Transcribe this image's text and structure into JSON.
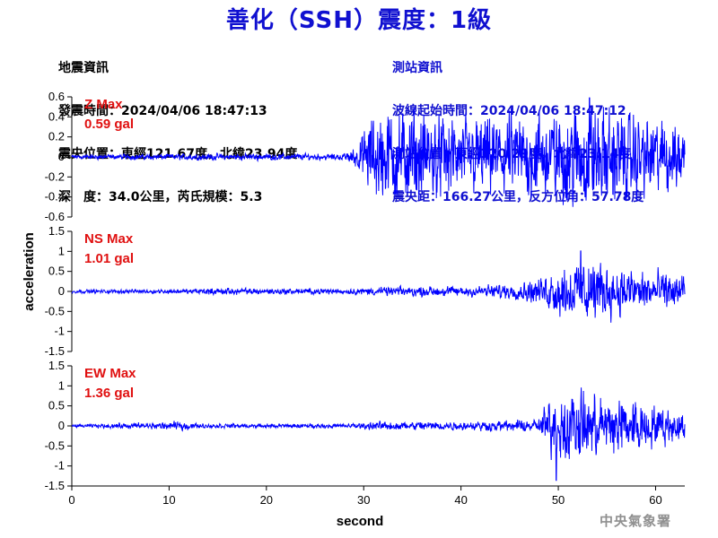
{
  "title": "善化（SSH）震度：1級",
  "quake_info": {
    "heading": "地震資訊",
    "origin_time": "發震時間：2024/04/06 18:47:13",
    "epicenter": "震央位置：東經121.67度，北緯23.94度",
    "depth_magnitude": "深　度：34.0公里，芮氏規模：5.3"
  },
  "station_info": {
    "heading": "測站資訊",
    "arrival_time": "波線起始時間：2024/04/06 18:47:12",
    "location": "測站位置：東經120.29度，北緯23.14度",
    "distance": "震央距：166.27公里，反方位角：57.78度"
  },
  "agency": "中央氣象署",
  "colors": {
    "title": "#1010d0",
    "trace": "#0000ff",
    "max_label": "#e01010",
    "agency": "#909090"
  },
  "chart_data": {
    "type": "line",
    "xlabel": "second",
    "ylabel": "acceleration",
    "xlim": [
      0,
      63
    ],
    "xticks": [
      0,
      10,
      20,
      30,
      40,
      50,
      60
    ],
    "panels": [
      {
        "name": "Z",
        "max_label": "Z Max",
        "max_value": "0.59 gal",
        "ylim": [
          -0.6,
          0.6
        ],
        "yticks": [
          "0.6",
          "0.4",
          "0.2",
          "0",
          "-0.2",
          "-0.4",
          "-0.6"
        ],
        "yvalues": [
          0.6,
          0.4,
          0.2,
          0,
          -0.2,
          -0.4,
          -0.6
        ],
        "envelope": [
          [
            0,
            0.02
          ],
          [
            12,
            0.03
          ],
          [
            28,
            0.03
          ],
          [
            29.5,
            0.12
          ],
          [
            30.5,
            0.35
          ],
          [
            32,
            0.45
          ],
          [
            35,
            0.42
          ],
          [
            40,
            0.35
          ],
          [
            45,
            0.38
          ],
          [
            50,
            0.42
          ],
          [
            53,
            0.5
          ],
          [
            56,
            0.42
          ],
          [
            60,
            0.35
          ],
          [
            63,
            0.3
          ]
        ],
        "peak": {
          "t": 53.2,
          "value": 0.59
        }
      },
      {
        "name": "NS",
        "max_label": "NS Max",
        "max_value": "1.01 gal",
        "ylim": [
          -1.5,
          1.5
        ],
        "yticks": [
          "1.5",
          "1",
          "0.5",
          "0",
          "-0.5",
          "-1",
          "-1.5"
        ],
        "yvalues": [
          1.5,
          1,
          0.5,
          0,
          -0.5,
          -1,
          -1.5
        ],
        "envelope": [
          [
            0,
            0.04
          ],
          [
            12,
            0.05
          ],
          [
            14,
            0.08
          ],
          [
            28,
            0.06
          ],
          [
            32,
            0.1
          ],
          [
            40,
            0.12
          ],
          [
            46,
            0.18
          ],
          [
            48,
            0.3
          ],
          [
            50,
            0.55
          ],
          [
            53,
            0.7
          ],
          [
            56,
            0.55
          ],
          [
            60,
            0.45
          ],
          [
            63,
            0.4
          ]
        ],
        "peak": {
          "t": 52.3,
          "value": 1.01
        }
      },
      {
        "name": "EW",
        "max_label": "EW Max",
        "max_value": "1.36 gal",
        "ylim": [
          -1.5,
          1.5
        ],
        "yticks": [
          "1.5",
          "1",
          "0.5",
          "0",
          "-0.5",
          "-1",
          "-1.5"
        ],
        "yvalues": [
          1.5,
          1,
          0.5,
          0,
          -0.5,
          -1,
          -1.5
        ],
        "envelope": [
          [
            0,
            0.03
          ],
          [
            12,
            0.1
          ],
          [
            13,
            0.05
          ],
          [
            28,
            0.05
          ],
          [
            32,
            0.1
          ],
          [
            40,
            0.1
          ],
          [
            45,
            0.12
          ],
          [
            48,
            0.15
          ],
          [
            49,
            0.6
          ],
          [
            51,
            0.8
          ],
          [
            54,
            0.75
          ],
          [
            58,
            0.6
          ],
          [
            60,
            0.45
          ],
          [
            63,
            0.3
          ]
        ],
        "peak": {
          "t": 49.8,
          "value": -1.36
        }
      }
    ]
  }
}
